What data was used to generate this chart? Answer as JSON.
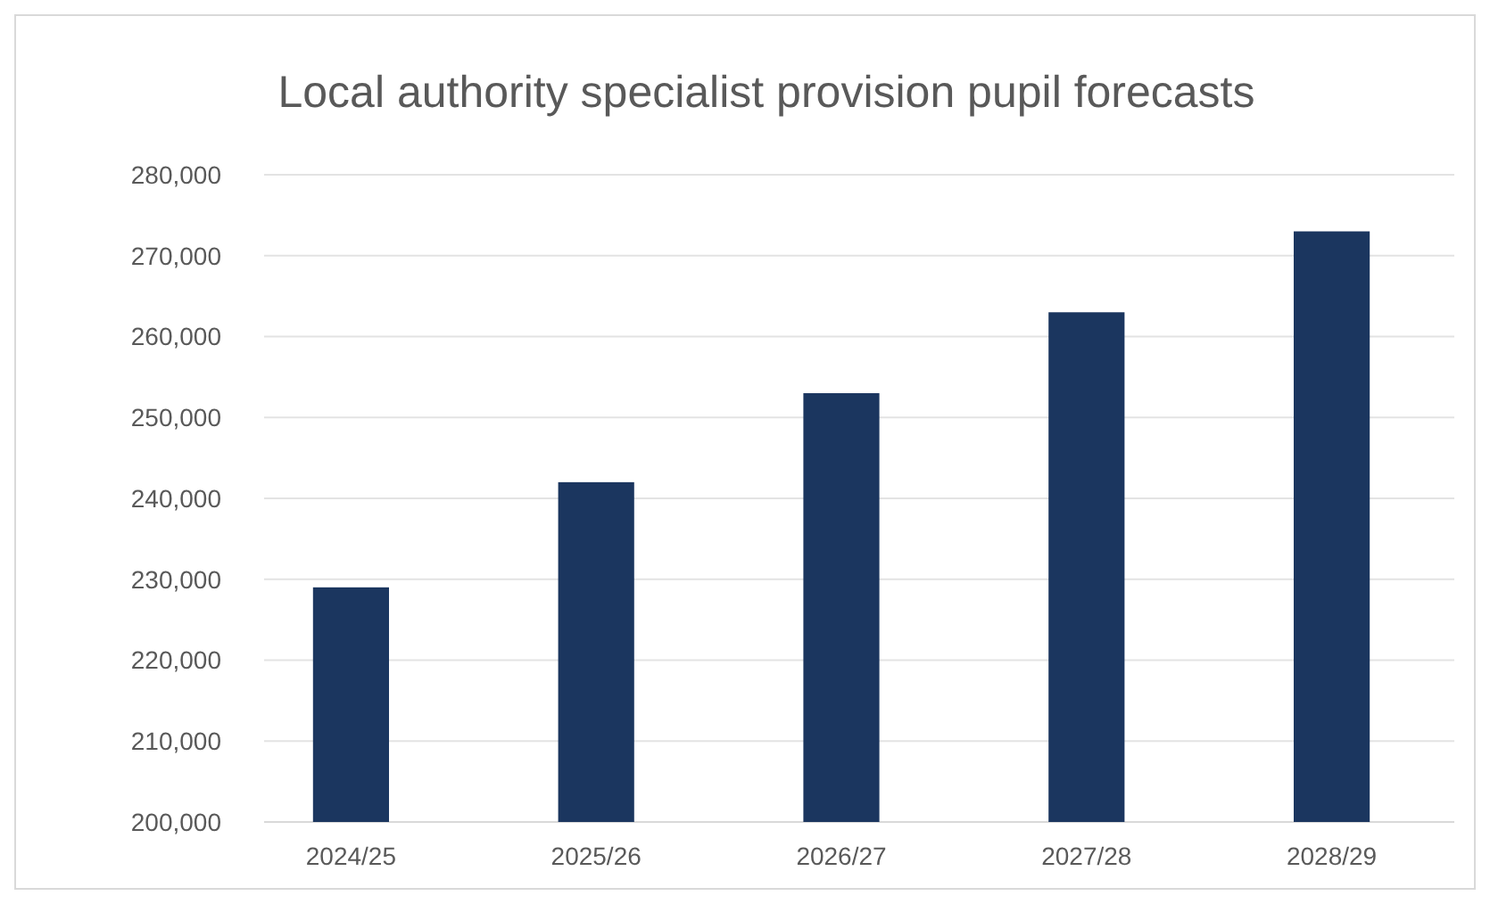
{
  "chart_data": {
    "type": "bar",
    "title": "Local authority specialist provision pupil forecasts",
    "categories": [
      "2024/25",
      "2025/26",
      "2026/27",
      "2027/28",
      "2028/29"
    ],
    "values": [
      229000,
      242000,
      253000,
      263000,
      273000
    ],
    "color": "#1b365f",
    "ylim": [
      200000,
      280000
    ],
    "yticks": [
      {
        "value": 200000,
        "label": "200,000"
      },
      {
        "value": 210000,
        "label": "210,000"
      },
      {
        "value": 220000,
        "label": "220,000"
      },
      {
        "value": 230000,
        "label": "230,000"
      },
      {
        "value": 240000,
        "label": "240,000"
      },
      {
        "value": 250000,
        "label": "250,000"
      },
      {
        "value": 260000,
        "label": "260,000"
      },
      {
        "value": 270000,
        "label": "270,000"
      },
      {
        "value": 280000,
        "label": "280,000"
      }
    ],
    "grid": "y"
  }
}
